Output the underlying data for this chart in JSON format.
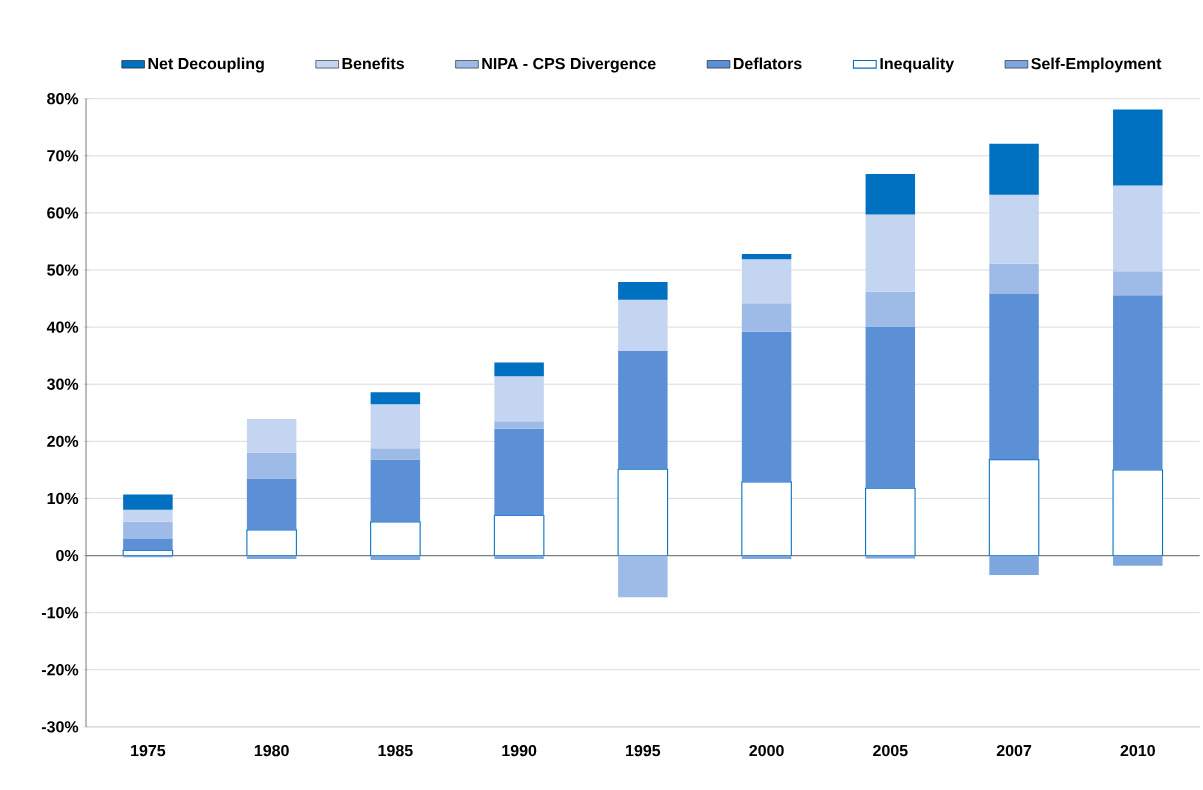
{
  "chart_data": {
    "type": "bar",
    "stacked": true,
    "legend": "top",
    "grid": "y",
    "categories": [
      "1975",
      "1980",
      "1985",
      "1990",
      "1995",
      "2000",
      "2005",
      "2007",
      "2010"
    ],
    "ylim": [
      -30,
      80
    ],
    "yticks": [
      {
        "value": -30,
        "label": "-30%"
      },
      {
        "value": -20,
        "label": "-20%"
      },
      {
        "value": -10,
        "label": "-10%"
      },
      {
        "value": 0,
        "label": "0%"
      },
      {
        "value": 10,
        "label": "10%"
      },
      {
        "value": 20,
        "label": "20%"
      },
      {
        "value": 30,
        "label": "30%"
      },
      {
        "value": 40,
        "label": "40%"
      },
      {
        "value": 50,
        "label": "50%"
      },
      {
        "value": 60,
        "label": "60%"
      },
      {
        "value": 70,
        "label": "70%"
      },
      {
        "value": 80,
        "label": "80%"
      }
    ],
    "series": [
      {
        "name": "Inequality",
        "color": "#ffffff",
        "values": [
          0.9,
          4.5,
          5.9,
          7.0,
          15.1,
          12.9,
          11.8,
          16.8,
          15.0
        ]
      },
      {
        "name": "Deflators",
        "color": "#5b8fd6",
        "values": [
          2.0,
          9.0,
          10.9,
          15.2,
          20.7,
          26.3,
          28.3,
          29.0,
          30.6
        ]
      },
      {
        "name": "NIPA - CPS Divergence",
        "color": "#9dbbe6",
        "values": [
          3.0,
          4.5,
          2.0,
          1.3,
          -7.3,
          5.0,
          6.1,
          5.3,
          4.2
        ]
      },
      {
        "name": "Benefits",
        "color": "#c3d5f0",
        "values": [
          2.1,
          5.9,
          7.7,
          7.9,
          9.0,
          7.7,
          13.5,
          12.1,
          15.0
        ]
      },
      {
        "name": "Net Decoupling",
        "color": "#0070c0",
        "values": [
          2.7,
          null,
          2.1,
          2.4,
          3.1,
          0.9,
          7.1,
          8.9,
          13.3
        ]
      },
      {
        "name": "Self-Employment",
        "color": "#7ea6de",
        "values": [
          -0.3,
          -0.6,
          -0.8,
          -0.6,
          null,
          -0.6,
          -0.5,
          -3.4,
          -1.8
        ]
      }
    ]
  }
}
